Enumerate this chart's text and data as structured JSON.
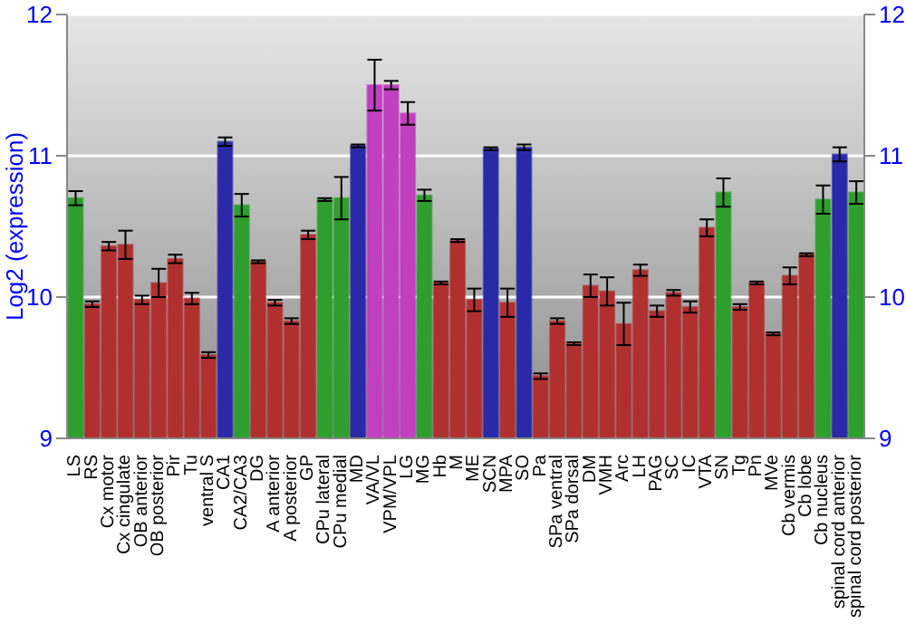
{
  "chart_data": {
    "type": "bar",
    "ylabel": "Log2 (expression)",
    "categories": [
      "LS",
      "RS",
      "Cx motor",
      "Cx cingulate",
      "OB anterior",
      "OB posterior",
      "Pir",
      "Tu",
      "ventral S",
      "CA1",
      "CA2/CA3",
      "DG",
      "A anterior",
      "A posterior",
      "GP",
      "CPu lateral",
      "CPu medial",
      "MD",
      "VA/VL",
      "VPM/VPL",
      "LG",
      "MG",
      "Hb",
      "M",
      "ME",
      "SCN",
      "MPA",
      "SO",
      "Pa",
      "SPa ventral",
      "SPa dorsal",
      "DM",
      "VMH",
      "Arc",
      "LH",
      "PAG",
      "SC",
      "IC",
      "VTA",
      "SN",
      "Tg",
      "Pn",
      "MVe",
      "Cb vermis",
      "Cb lobe",
      "Cb nucleus",
      "spinal cord anterior",
      "spinal cord posterior"
    ],
    "values": [
      10.7,
      9.95,
      10.36,
      10.37,
      9.98,
      10.1,
      10.27,
      9.99,
      9.59,
      11.1,
      10.65,
      10.25,
      9.96,
      9.83,
      10.44,
      10.69,
      10.7,
      11.07,
      11.5,
      11.5,
      11.3,
      10.72,
      10.1,
      10.4,
      9.98,
      11.05,
      9.96,
      11.06,
      9.44,
      9.83,
      9.67,
      10.08,
      10.04,
      9.81,
      10.19,
      9.9,
      10.03,
      9.93,
      10.49,
      10.74,
      9.93,
      10.1,
      9.74,
      10.15,
      10.3,
      10.69,
      11.01,
      10.74
    ],
    "errors": [
      0.05,
      0.02,
      0.03,
      0.1,
      0.03,
      0.1,
      0.03,
      0.04,
      0.02,
      0.03,
      0.08,
      0.01,
      0.02,
      0.02,
      0.03,
      0.01,
      0.15,
      0.01,
      0.18,
      0.03,
      0.08,
      0.04,
      0.01,
      0.01,
      0.08,
      0.01,
      0.1,
      0.02,
      0.02,
      0.02,
      0.01,
      0.08,
      0.1,
      0.15,
      0.04,
      0.04,
      0.02,
      0.04,
      0.06,
      0.1,
      0.02,
      0.01,
      0.01,
      0.06,
      0.01,
      0.1,
      0.05,
      0.08
    ],
    "colors": [
      "#2e9e2e",
      "#b03030",
      "#b03030",
      "#b03030",
      "#b03030",
      "#b03030",
      "#b03030",
      "#b03030",
      "#b03030",
      "#2a2aa8",
      "#2e9e2e",
      "#b03030",
      "#b03030",
      "#b03030",
      "#b03030",
      "#2e9e2e",
      "#2e9e2e",
      "#2a2aa8",
      "#c040c0",
      "#c040c0",
      "#c040c0",
      "#2e9e2e",
      "#b03030",
      "#b03030",
      "#b03030",
      "#2a2aa8",
      "#b03030",
      "#2a2aa8",
      "#b03030",
      "#b03030",
      "#b03030",
      "#b03030",
      "#b03030",
      "#b03030",
      "#b03030",
      "#b03030",
      "#b03030",
      "#b03030",
      "#b03030",
      "#2e9e2e",
      "#b03030",
      "#b03030",
      "#b03030",
      "#b03030",
      "#b03030",
      "#2e9e2e",
      "#2a2aa8",
      "#2e9e2e"
    ],
    "ylim": [
      9,
      12
    ],
    "yticks": [
      9,
      10,
      11,
      12
    ],
    "y2lim": [
      9,
      12
    ],
    "y2ticks": [
      9,
      10,
      11,
      12
    ],
    "grid": "y"
  }
}
